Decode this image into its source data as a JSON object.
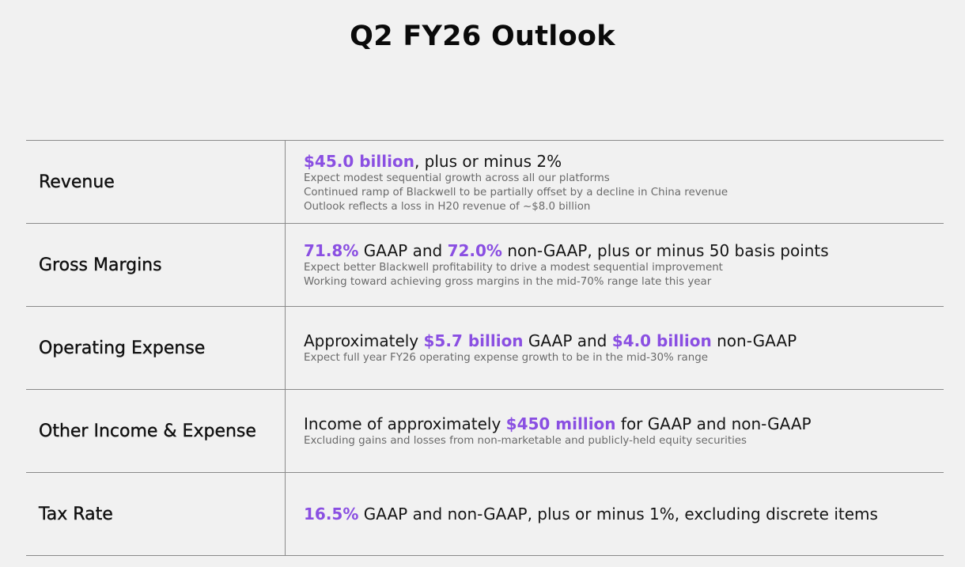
{
  "page": {
    "title": "Q2 FY26 Outlook"
  },
  "rows": [
    {
      "label": "Revenue",
      "headline": {
        "p1_highlight": "$45.0 billion",
        "p2": ", plus or minus 2%"
      },
      "notes": [
        "Expect modest sequential growth across all our platforms",
        "Continued ramp of Blackwell to be partially offset by a decline in China revenue",
        "Outlook reflects a loss in H20 revenue of ~$8.0 billion"
      ]
    },
    {
      "label": "Gross Margins",
      "headline": {
        "p1_highlight": "71.8%",
        "p2": " GAAP and ",
        "p3_highlight": "72.0%",
        "p4": " non-GAAP, plus or minus 50 basis points"
      },
      "notes": [
        "Expect better Blackwell profitability to drive a modest sequential improvement",
        "Working toward achieving gross margins in the mid-70% range late this year"
      ]
    },
    {
      "label": "Operating Expense",
      "headline": {
        "p1": "Approximately ",
        "p2_highlight": "$5.7 billion",
        "p3": " GAAP and ",
        "p4_highlight": "$4.0 billion",
        "p5": " non-GAAP"
      },
      "notes": [
        "Expect full year FY26 operating expense growth to be in the mid-30% range"
      ]
    },
    {
      "label": "Other Income & Expense",
      "headline": {
        "p1": "Income of approximately ",
        "p2_highlight": "$450 million",
        "p3": " for GAAP and non-GAAP"
      },
      "notes": [
        "Excluding gains and losses from non-marketable and publicly-held equity securities"
      ]
    },
    {
      "label": "Tax Rate",
      "headline": {
        "p1_highlight": "16.5%",
        "p2": " GAAP and non-GAAP, plus or minus 1%, excluding discrete items"
      },
      "notes": []
    }
  ],
  "colors": {
    "accent": "#8a4fe2",
    "background": "#f1f1f1",
    "rule": "#8a8a8a"
  }
}
